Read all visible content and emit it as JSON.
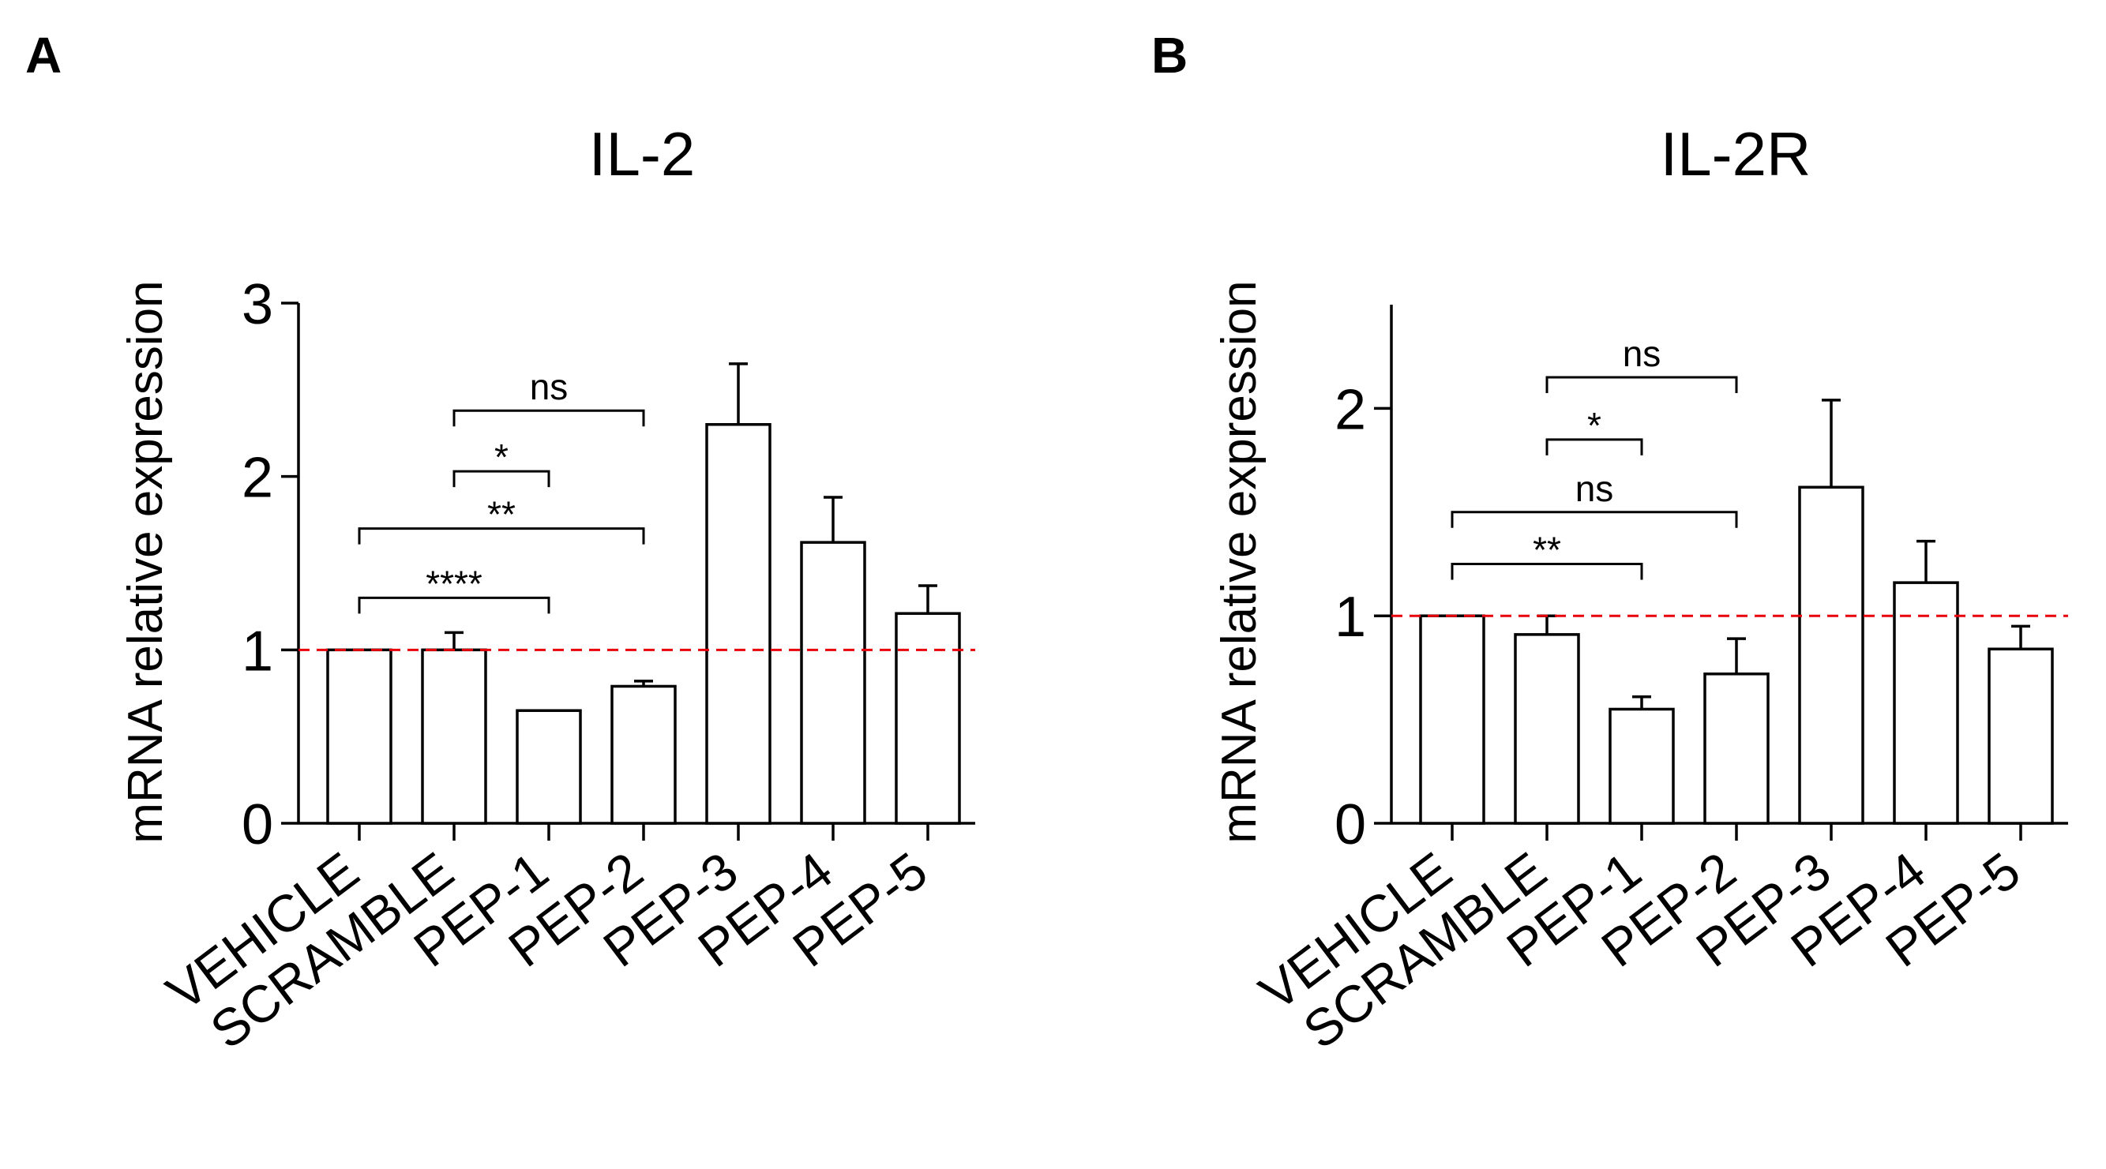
{
  "chart_data": [
    {
      "panel": "A",
      "type": "bar",
      "title": "IL-2",
      "ylabel": "mRNA relative expression",
      "ylim": [
        0,
        3
      ],
      "yticks": [
        "0",
        "1",
        "2",
        "3"
      ],
      "categories": [
        "VEHICLE",
        "SCRAMBLE",
        "PEP-1",
        "PEP-2",
        "PEP-3",
        "PEP-4",
        "PEP-5"
      ],
      "values": [
        1.0,
        1.0,
        0.65,
        0.79,
        2.3,
        1.62,
        1.21
      ],
      "errors": [
        0,
        0.1,
        0,
        0.03,
        0.35,
        0.26,
        0.16
      ],
      "reference_line": 1,
      "comparisons": [
        {
          "from": 0,
          "to": 2,
          "label": "****",
          "y": 1.3
        },
        {
          "from": 0,
          "to": 3,
          "label": "**",
          "y": 1.7
        },
        {
          "from": 1,
          "to": 2,
          "label": "*",
          "y": 2.03
        },
        {
          "from": 1,
          "to": 3,
          "label": "ns",
          "y": 2.38
        }
      ]
    },
    {
      "panel": "B",
      "type": "bar",
      "title": "IL-2R",
      "ylabel": "mRNA relative expression",
      "ylim": [
        0,
        2.5
      ],
      "yticks": [
        "0",
        "1",
        "2"
      ],
      "categories": [
        "VEHICLE",
        "SCRAMBLE",
        "PEP-1",
        "PEP-2",
        "PEP-3",
        "PEP-4",
        "PEP-5"
      ],
      "values": [
        1.0,
        0.91,
        0.55,
        0.72,
        1.62,
        1.16,
        0.84
      ],
      "errors": [
        0,
        0.09,
        0.06,
        0.17,
        0.42,
        0.2,
        0.11
      ],
      "reference_line": 1,
      "comparisons": [
        {
          "from": 0,
          "to": 2,
          "label": "**",
          "y": 1.25
        },
        {
          "from": 0,
          "to": 3,
          "label": "ns",
          "y": 1.5
        },
        {
          "from": 1,
          "to": 2,
          "label": "*",
          "y": 1.85
        },
        {
          "from": 1,
          "to": 3,
          "label": "ns",
          "y": 2.15
        }
      ]
    }
  ],
  "colors": {
    "bar_fill": "#ffffff",
    "outline": "#000000",
    "reference_line": "#e8000b"
  }
}
